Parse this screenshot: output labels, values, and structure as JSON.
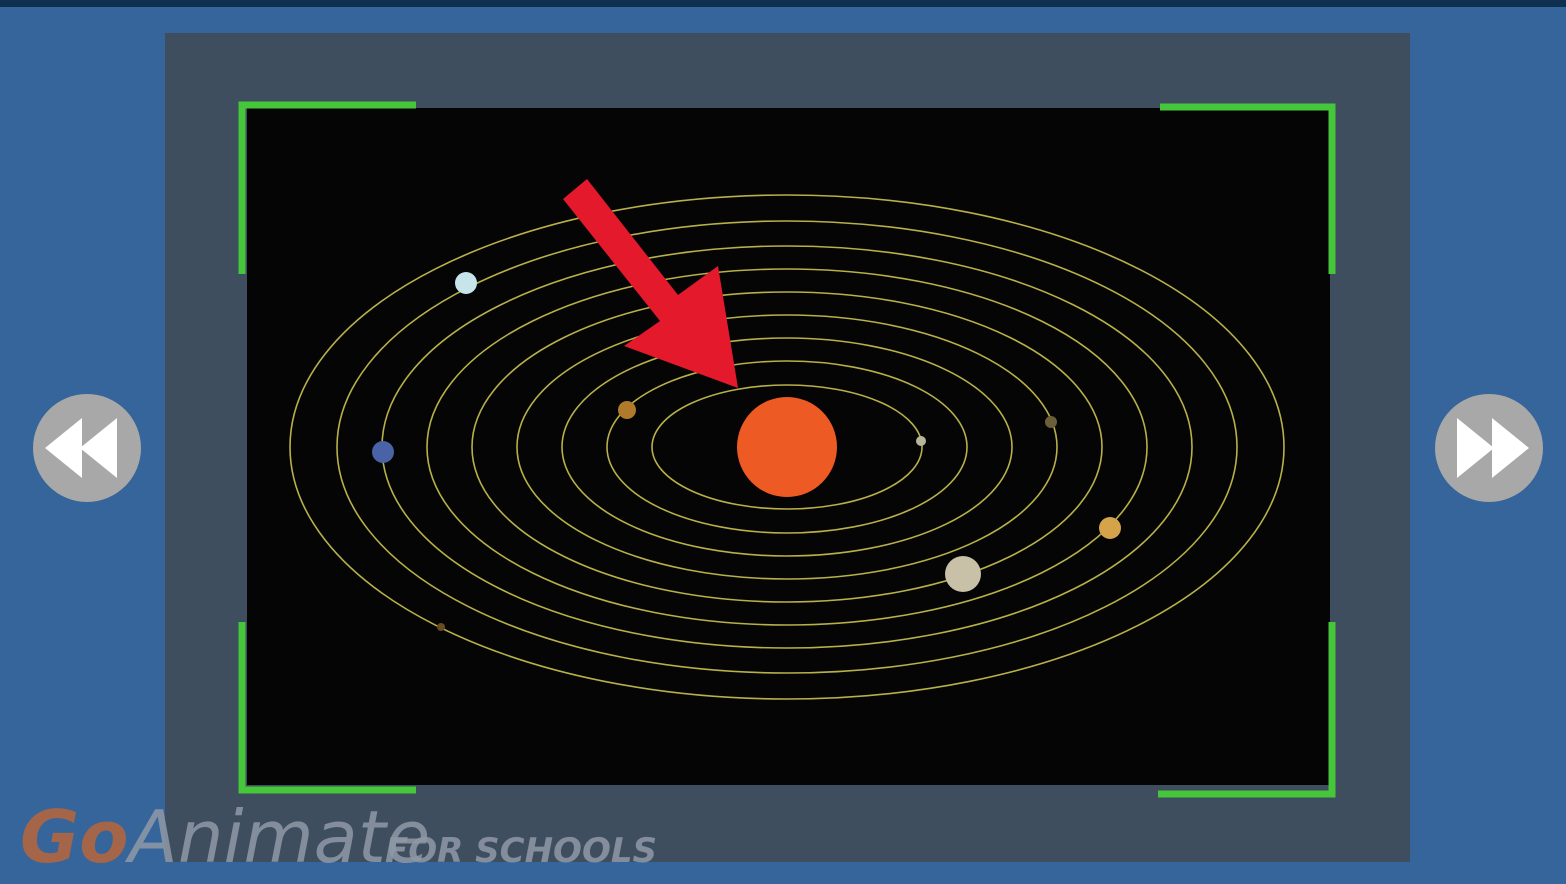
{
  "watermark": {
    "brand_prefix": "Go",
    "brand_suffix": "Animate",
    "tagline": "FOR SCHOOLS"
  }
}
